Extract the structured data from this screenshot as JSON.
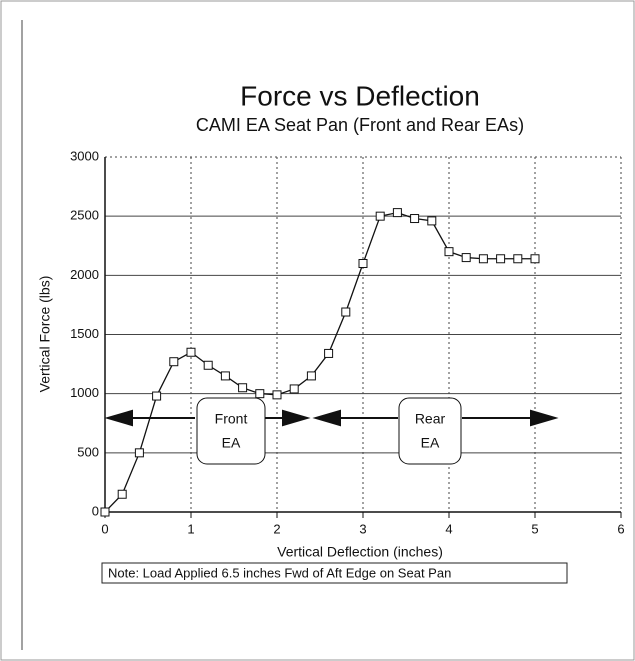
{
  "chart_data": {
    "type": "line",
    "title": "Force vs Deflection",
    "subtitle": "CAMI EA Seat Pan (Front and Rear EAs)",
    "x_label": "Vertical Deflection (inches)",
    "y_label": "Vertical Force (lbs)",
    "note": "Note: Load Applied 6.5 inches Fwd of Aft Edge on Seat Pan",
    "front_label": [
      "Front",
      "EA"
    ],
    "rear_label": [
      "Rear",
      "EA"
    ],
    "x": [
      0,
      0.2,
      0.4,
      0.6,
      0.8,
      1.0,
      1.2,
      1.4,
      1.6,
      1.8,
      2.0,
      2.2,
      2.4,
      2.6,
      2.8,
      3.0,
      3.2,
      3.4,
      3.6,
      3.8,
      4.0,
      4.2,
      4.4,
      4.6,
      4.8,
      5.0
    ],
    "series": [
      {
        "color": "#111111",
        "values": [
          0,
          150,
          500,
          980,
          1270,
          1350,
          1240,
          1150,
          1050,
          1000,
          990,
          1040,
          1150,
          1340,
          1690,
          2100,
          2500,
          2530,
          2480,
          2460,
          2200,
          2150,
          2140,
          2140,
          2140,
          2140
        ]
      }
    ],
    "xlim": [
      0,
      6
    ],
    "xticks": [
      0,
      1,
      2,
      3,
      4,
      5,
      6
    ],
    "ylim": [
      0,
      3000
    ],
    "yticks": [
      0,
      500,
      1000,
      1500,
      2000,
      2500,
      3000
    ],
    "grid": true
  }
}
